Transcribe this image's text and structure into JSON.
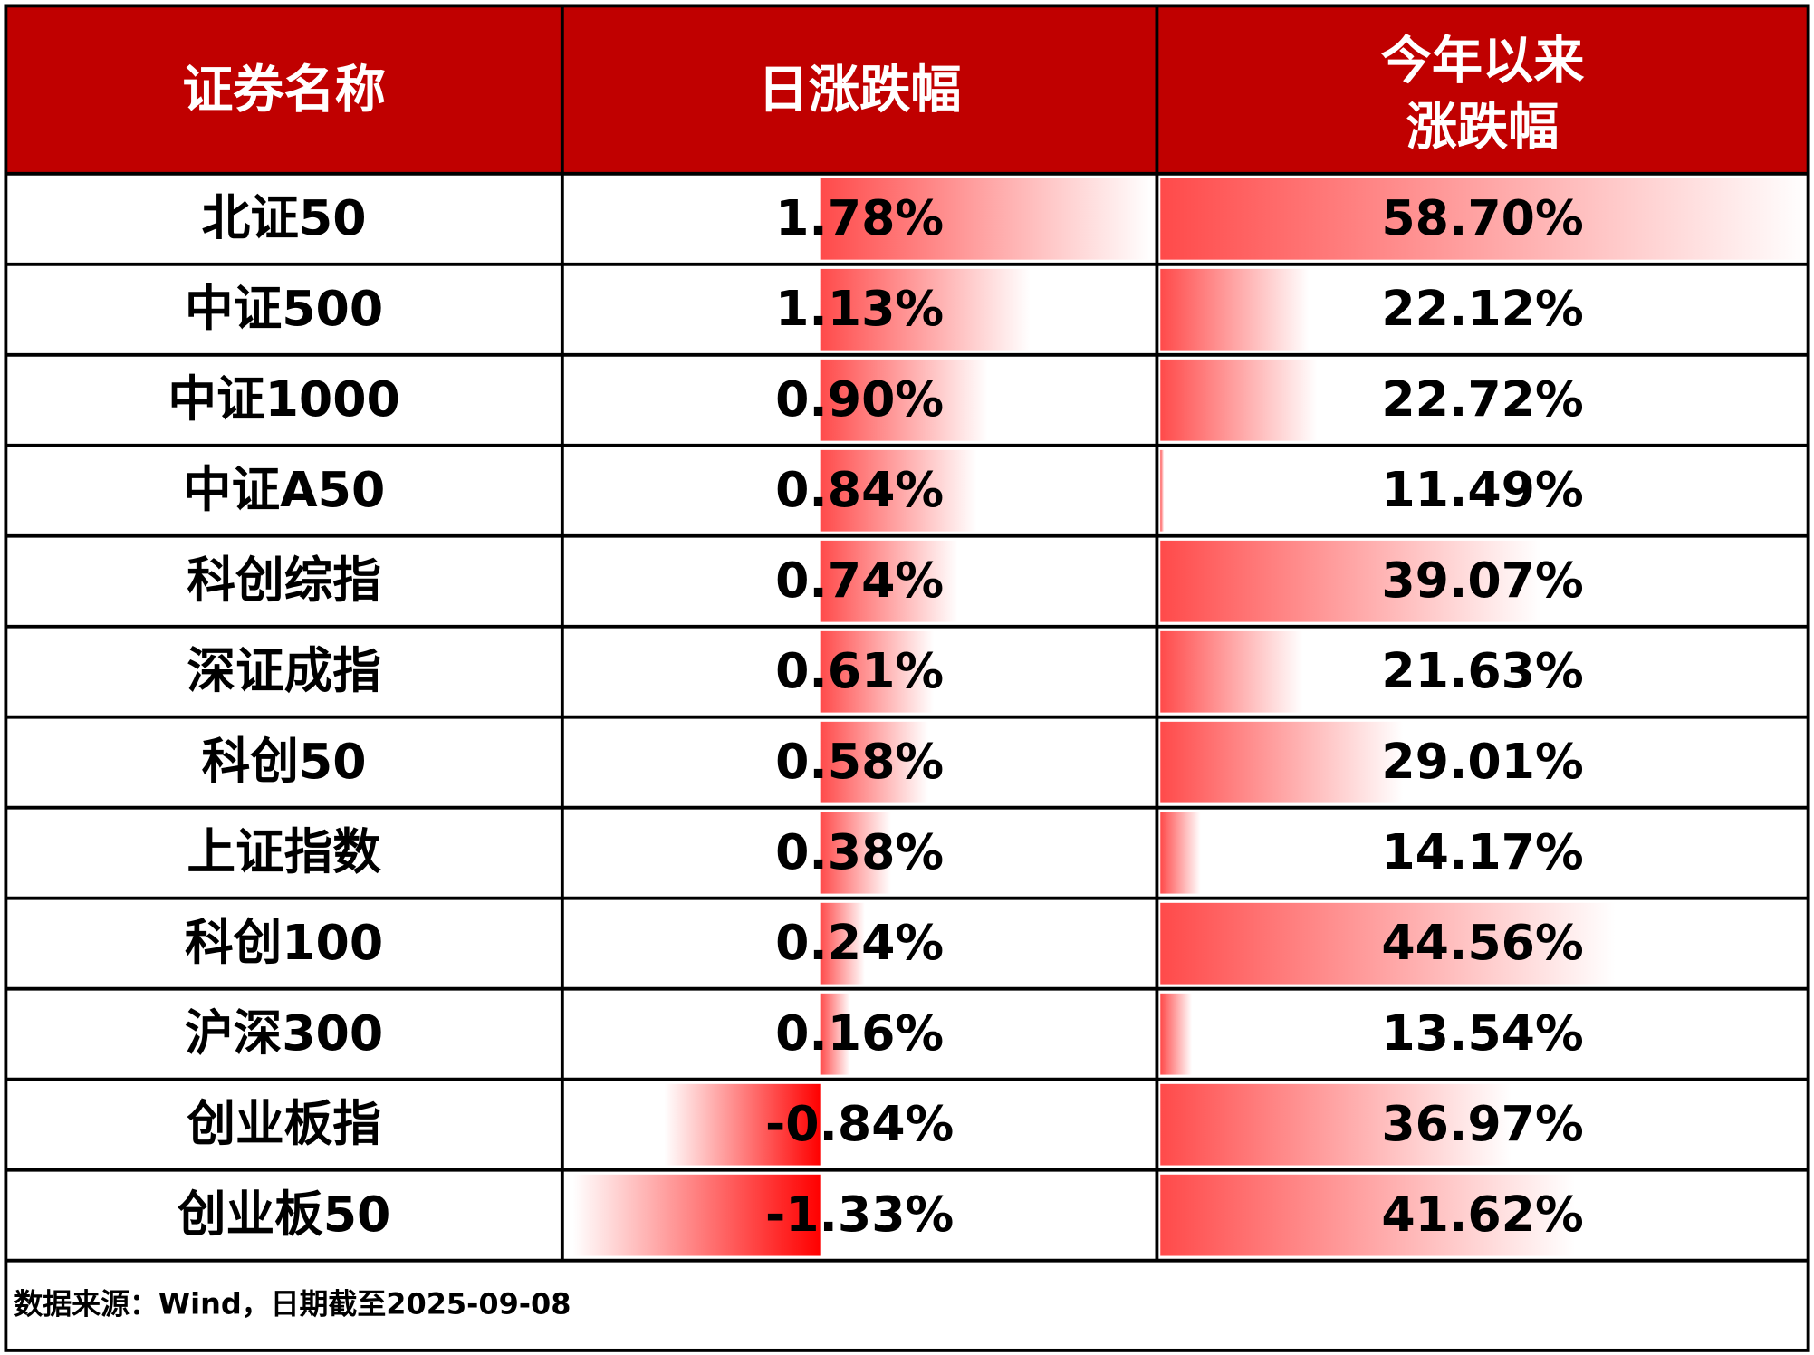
{
  "table": {
    "columns": [
      "证券名称",
      "日涨跌幅",
      [
        "今年以来",
        "涨跌幅"
      ]
    ],
    "rows": [
      {
        "name": "北证50",
        "daily": {
          "value": 1.78,
          "label": "1.78%"
        },
        "ytd": {
          "value": 58.7,
          "label": "58.70%"
        }
      },
      {
        "name": "中证500",
        "daily": {
          "value": 1.13,
          "label": "1.13%"
        },
        "ytd": {
          "value": 22.12,
          "label": "22.12%"
        }
      },
      {
        "name": "中证1000",
        "daily": {
          "value": 0.9,
          "label": "0.90%"
        },
        "ytd": {
          "value": 22.72,
          "label": "22.72%"
        }
      },
      {
        "name": "中证A50",
        "daily": {
          "value": 0.84,
          "label": "0.84%"
        },
        "ytd": {
          "value": 11.49,
          "label": "11.49%"
        }
      },
      {
        "name": "科创综指",
        "daily": {
          "value": 0.74,
          "label": "0.74%"
        },
        "ytd": {
          "value": 39.07,
          "label": "39.07%"
        }
      },
      {
        "name": "深证成指",
        "daily": {
          "value": 0.61,
          "label": "0.61%"
        },
        "ytd": {
          "value": 21.63,
          "label": "21.63%"
        }
      },
      {
        "name": "科创50",
        "daily": {
          "value": 0.58,
          "label": "0.58%"
        },
        "ytd": {
          "value": 29.01,
          "label": "29.01%"
        }
      },
      {
        "name": "上证指数",
        "daily": {
          "value": 0.38,
          "label": "0.38%"
        },
        "ytd": {
          "value": 14.17,
          "label": "14.17%"
        }
      },
      {
        "name": "科创100",
        "daily": {
          "value": 0.24,
          "label": "0.24%"
        },
        "ytd": {
          "value": 44.56,
          "label": "44.56%"
        }
      },
      {
        "name": "沪深300",
        "daily": {
          "value": 0.16,
          "label": "0.16%"
        },
        "ytd": {
          "value": 13.54,
          "label": "13.54%"
        }
      },
      {
        "name": "创业板指",
        "daily": {
          "value": -0.84,
          "label": "-0.84%"
        },
        "ytd": {
          "value": 36.97,
          "label": "36.97%"
        }
      },
      {
        "name": "创业板50",
        "daily": {
          "value": -1.33,
          "label": "-1.33%"
        },
        "ytd": {
          "value": 41.62,
          "label": "41.62%"
        }
      }
    ],
    "footer": "数据来源：Wind，日期截至2025-09-08"
  }
}
